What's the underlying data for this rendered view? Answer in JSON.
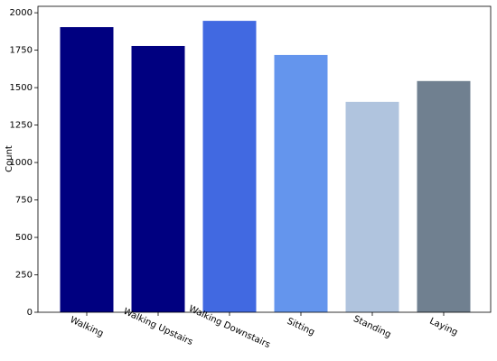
{
  "chart_data": {
    "type": "bar",
    "categories": [
      "Walking",
      "Walking Upstairs",
      "Walking Downstairs",
      "Sitting",
      "Standing",
      "Laying"
    ],
    "values": [
      1904,
      1778,
      1946,
      1718,
      1405,
      1544
    ],
    "colors": [
      "#000080",
      "#000080",
      "#4169e1",
      "#6495ed",
      "#b0c4de",
      "#708090"
    ],
    "y_label": "Count",
    "ylim": [
      0,
      2043
    ],
    "yticks": [
      0,
      250,
      500,
      750,
      1000,
      1250,
      1500,
      1750,
      2000
    ],
    "grid": false
  }
}
